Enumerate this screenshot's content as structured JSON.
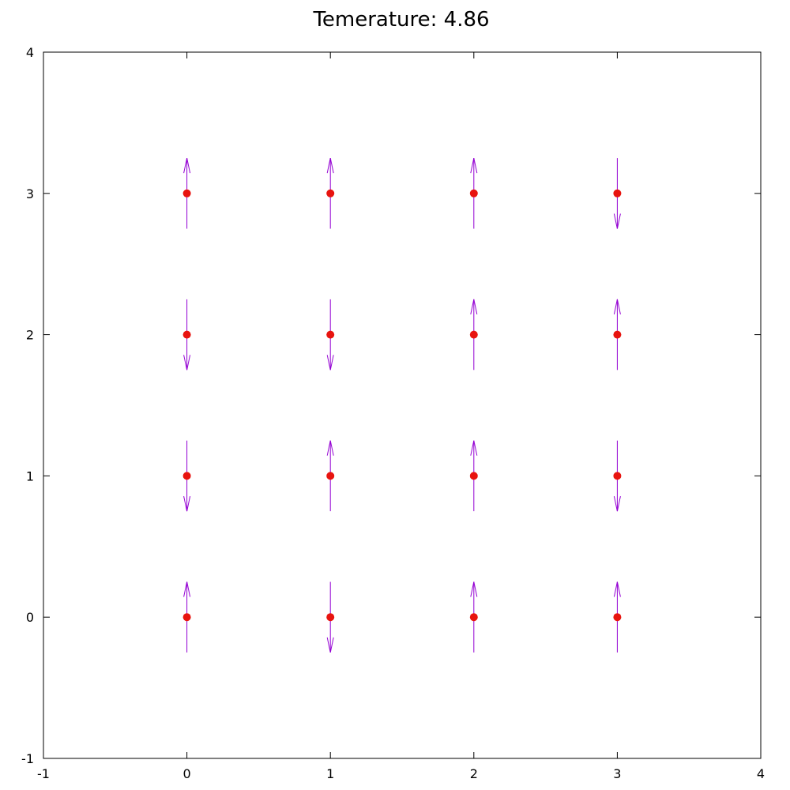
{
  "chart_data": {
    "type": "scatter",
    "title": "Temerature: 4.86",
    "xlabel": "",
    "ylabel": "",
    "xlim": [
      -1,
      4
    ],
    "ylim": [
      -1,
      4
    ],
    "xticks": [
      "-1",
      "0",
      "1",
      "2",
      "3",
      "4"
    ],
    "yticks": [
      "-1",
      "0",
      "1",
      "2",
      "3",
      "4"
    ],
    "grid": false,
    "legend": "none",
    "colors": {
      "point": "#e8140f",
      "arrow": "#9400d3",
      "axis": "#000000"
    },
    "point_marker": "filled-circle",
    "arrow_half_length": 0.25,
    "spins": [
      {
        "x": 0,
        "y": 0,
        "spin": "up"
      },
      {
        "x": 1,
        "y": 0,
        "spin": "down"
      },
      {
        "x": 2,
        "y": 0,
        "spin": "up"
      },
      {
        "x": 3,
        "y": 0,
        "spin": "up"
      },
      {
        "x": 0,
        "y": 1,
        "spin": "down"
      },
      {
        "x": 1,
        "y": 1,
        "spin": "up"
      },
      {
        "x": 2,
        "y": 1,
        "spin": "up"
      },
      {
        "x": 3,
        "y": 1,
        "spin": "down"
      },
      {
        "x": 0,
        "y": 2,
        "spin": "down"
      },
      {
        "x": 1,
        "y": 2,
        "spin": "down"
      },
      {
        "x": 2,
        "y": 2,
        "spin": "up"
      },
      {
        "x": 3,
        "y": 2,
        "spin": "up"
      },
      {
        "x": 0,
        "y": 3,
        "spin": "up"
      },
      {
        "x": 1,
        "y": 3,
        "spin": "up"
      },
      {
        "x": 2,
        "y": 3,
        "spin": "up"
      },
      {
        "x": 3,
        "y": 3,
        "spin": "down"
      }
    ]
  }
}
